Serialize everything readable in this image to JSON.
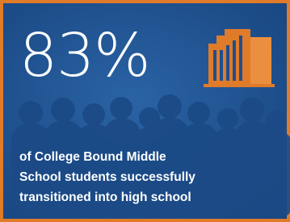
{
  "stat": {
    "value_text": "83%"
  },
  "caption": {
    "lines": [
      "of College Bound Middle",
      "School students successfully",
      "transitioned into high school"
    ]
  }
}
